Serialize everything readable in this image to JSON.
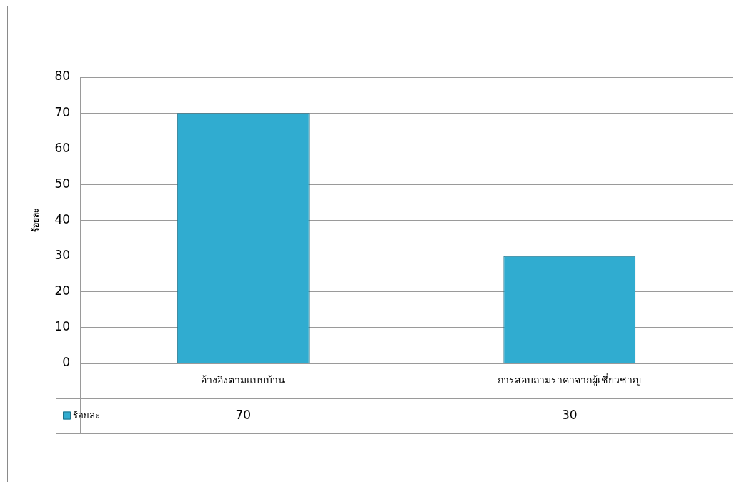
{
  "chart_data": {
    "type": "bar",
    "ylabel": "ร้อยละ",
    "categories": [
      "อ้างอิงตามแบบบ้าน",
      "การสอบถามราคาจากผู้เชี่ยวชาญ"
    ],
    "series": [
      {
        "name": "ร้อยละ",
        "color": "#30acd0",
        "values": [
          70,
          30
        ]
      }
    ],
    "ylim": [
      0,
      80
    ],
    "yticks": [
      0,
      10,
      20,
      30,
      40,
      50,
      60,
      70,
      80
    ],
    "grid": "y",
    "data_labels": true
  }
}
